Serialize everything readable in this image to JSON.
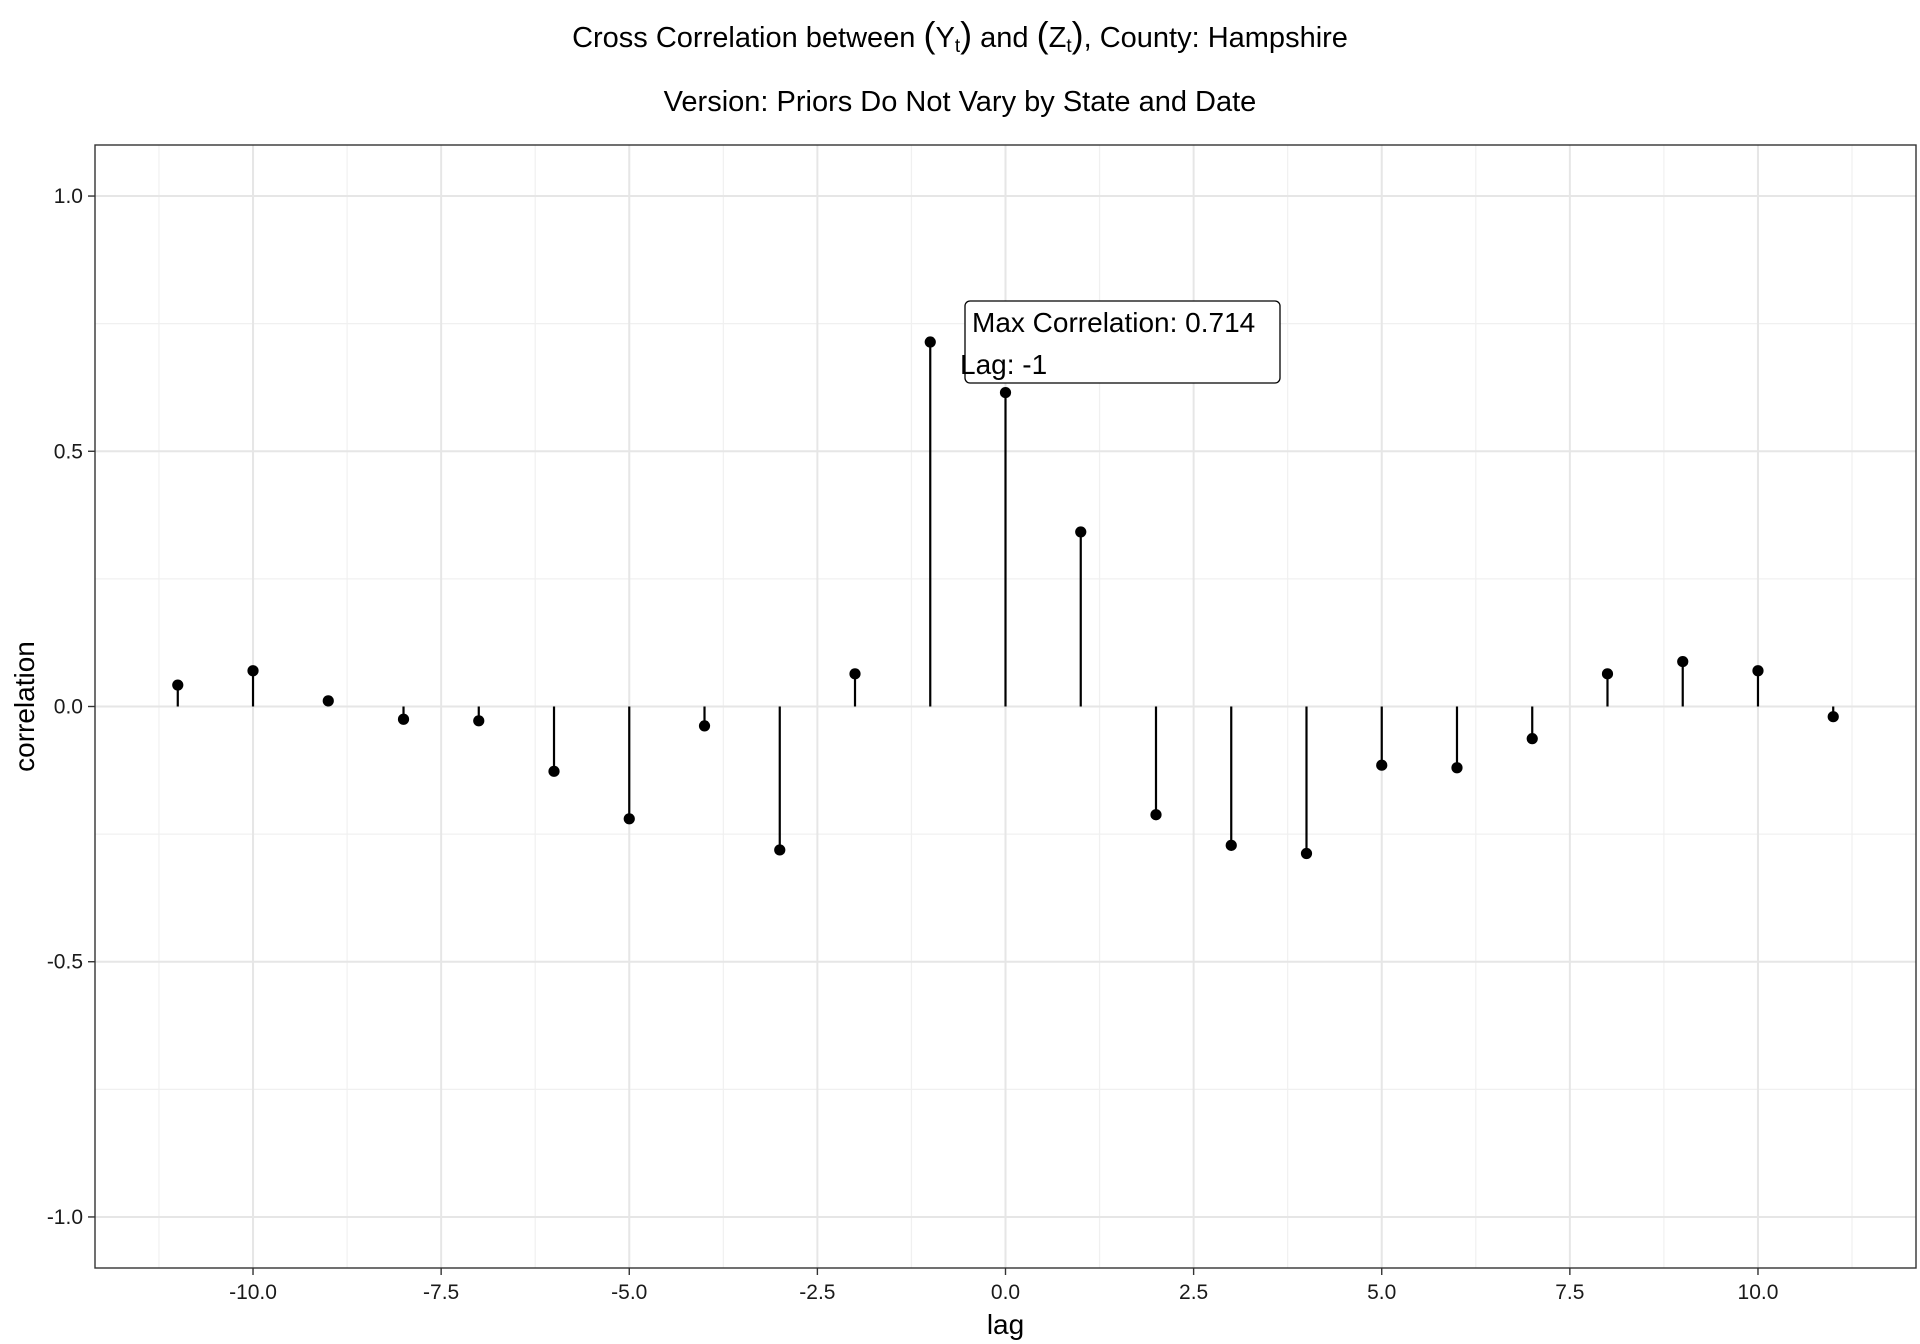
{
  "chart_data": {
    "type": "stem",
    "title_prefix": "Cross Correlation between ",
    "title_y_var": "Y",
    "title_z_var": "Z",
    "title_subscript": "t",
    "title_and": " and ",
    "title_suffix": ", County: Hampshire",
    "subtitle": "Version: Priors Do Not Vary by State and Date",
    "xlabel": "lag",
    "ylabel": "correlation",
    "xlim": [
      -12.1,
      12.1
    ],
    "ylim": [
      -1.1,
      1.1
    ],
    "x_ticks": [
      -10.0,
      -7.5,
      -5.0,
      -2.5,
      0.0,
      2.5,
      5.0,
      7.5,
      10.0
    ],
    "x_tick_labels": [
      "-10.0",
      "-7.5",
      "-5.0",
      "-2.5",
      "0.0",
      "2.5",
      "5.0",
      "7.5",
      "10.0"
    ],
    "y_ticks": [
      -1.0,
      -0.5,
      0.0,
      0.5,
      1.0
    ],
    "y_tick_labels": [
      "-1.0",
      "-0.5",
      "0.0",
      "0.5",
      "1.0"
    ],
    "grid": true,
    "points": [
      {
        "lag": -11,
        "correlation": 0.042
      },
      {
        "lag": -10,
        "correlation": 0.07
      },
      {
        "lag": -9,
        "correlation": 0.011
      },
      {
        "lag": -8,
        "correlation": -0.025
      },
      {
        "lag": -7,
        "correlation": -0.028
      },
      {
        "lag": -6,
        "correlation": -0.127
      },
      {
        "lag": -5,
        "correlation": -0.22
      },
      {
        "lag": -4,
        "correlation": -0.038
      },
      {
        "lag": -3,
        "correlation": -0.281
      },
      {
        "lag": -2,
        "correlation": 0.064
      },
      {
        "lag": -1,
        "correlation": 0.714
      },
      {
        "lag": 0,
        "correlation": 0.615
      },
      {
        "lag": 1,
        "correlation": 0.342
      },
      {
        "lag": 2,
        "correlation": -0.212
      },
      {
        "lag": 3,
        "correlation": -0.272
      },
      {
        "lag": 4,
        "correlation": -0.288
      },
      {
        "lag": 5,
        "correlation": -0.115
      },
      {
        "lag": 6,
        "correlation": -0.12
      },
      {
        "lag": 7,
        "correlation": -0.063
      },
      {
        "lag": 8,
        "correlation": 0.064
      },
      {
        "lag": 9,
        "correlation": 0.088
      },
      {
        "lag": 10,
        "correlation": 0.07
      },
      {
        "lag": 11,
        "correlation": -0.02
      }
    ],
    "annotation": {
      "line1": "Max Correlation: 0.714",
      "line2": "Lag: -1"
    }
  }
}
